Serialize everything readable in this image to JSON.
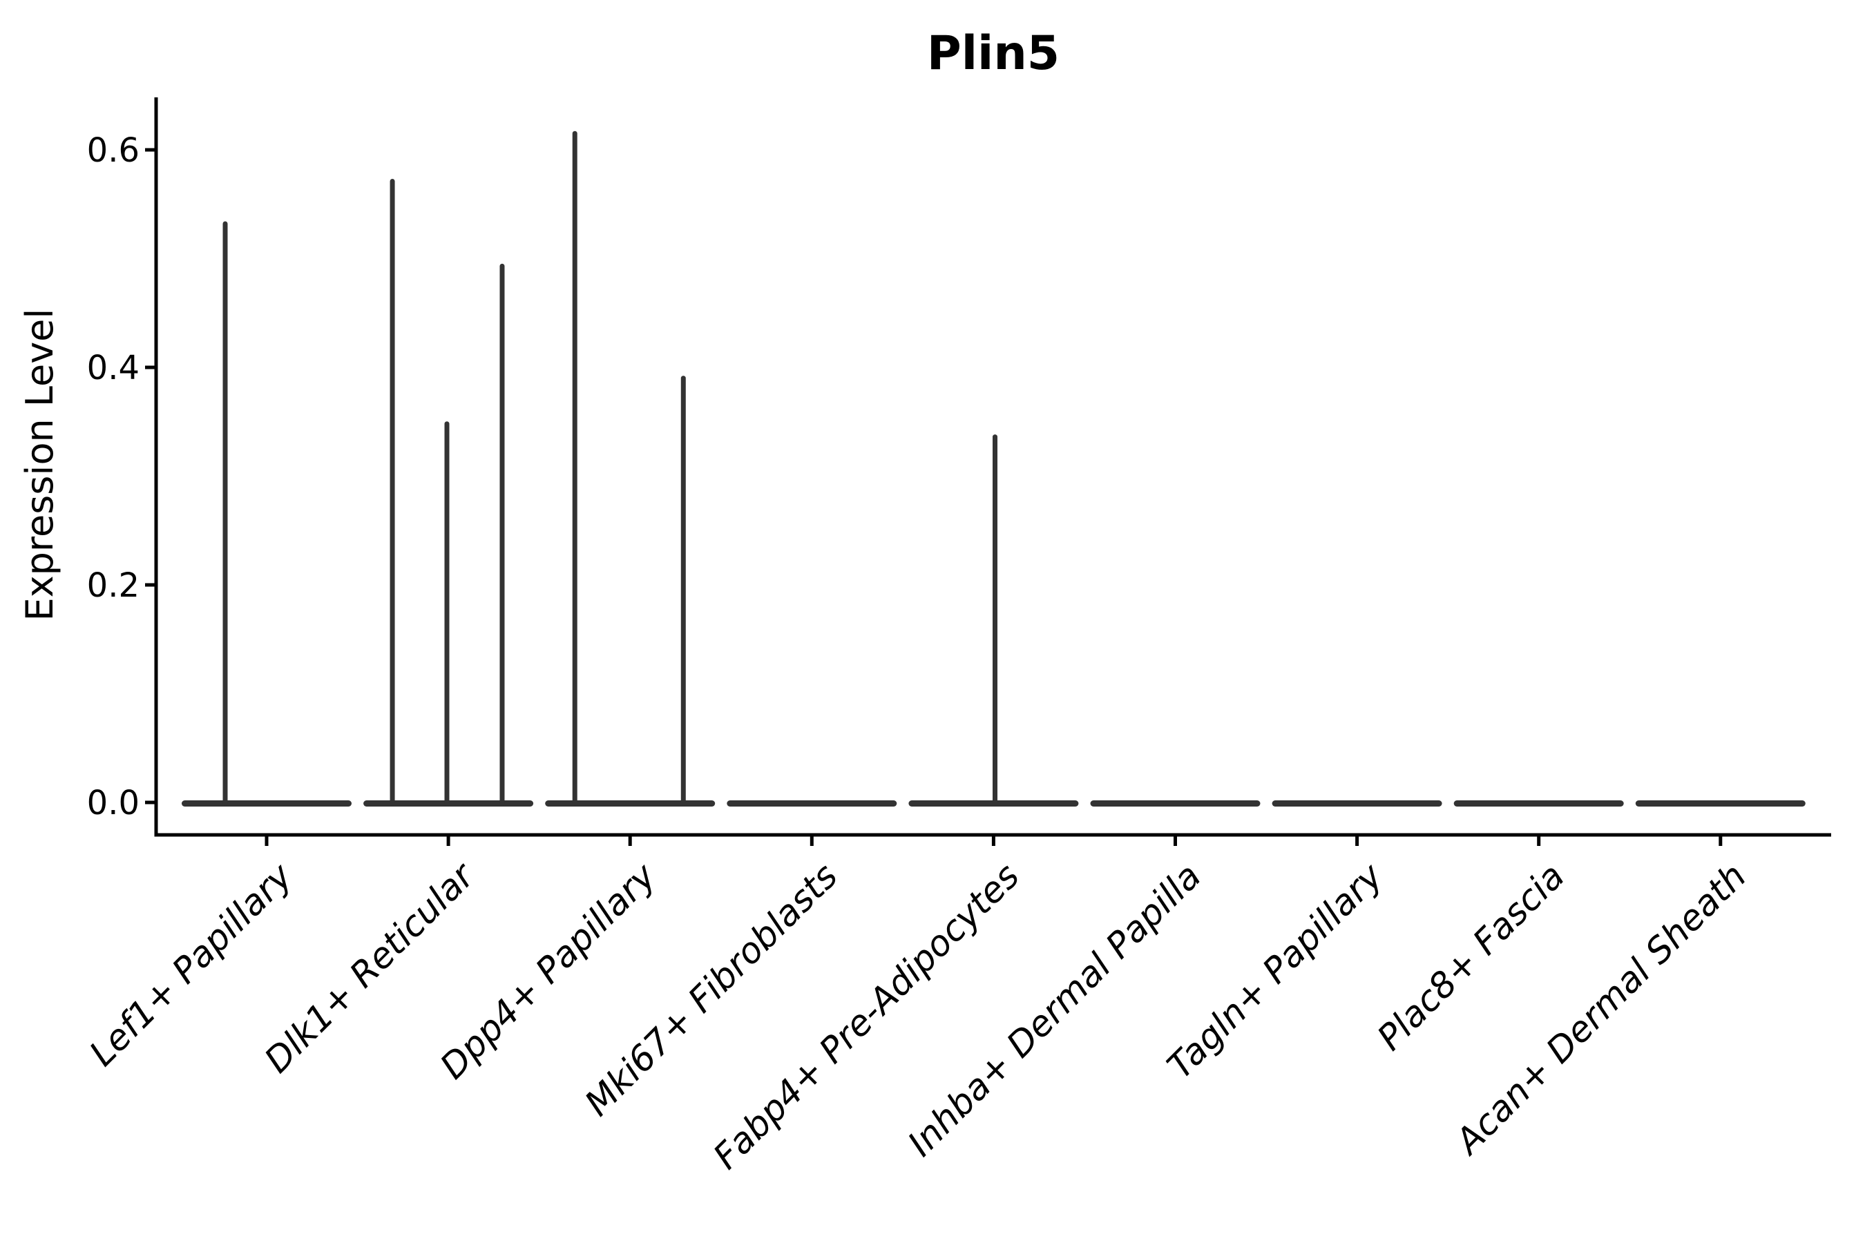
{
  "figure": {
    "background": "#ffffff"
  },
  "chart_data": {
    "type": "violin",
    "title": "Plin5",
    "xlabel": "",
    "ylabel": "Expression Level",
    "ylim": [
      -0.03,
      0.648
    ],
    "ytick_values": [
      0.0,
      0.2,
      0.4,
      0.6
    ],
    "yticks": [
      "0.0",
      "0.2",
      "0.4",
      "0.6"
    ],
    "grid": false,
    "legend": "none",
    "label_rotation_deg": 45,
    "categories": [
      "Lef1+ Papillary",
      "Dlk1+ Reticular",
      "Dpp4+ Papillary",
      "Mki67+ Fibroblasts",
      "Fabp4+ Pre-Adipocytes",
      "Inhba+ Dermal Papilla",
      "Tagln+ Papillary",
      "Plac8+ Fascia",
      "Acan+ Dermal Sheath"
    ],
    "violins": [
      {
        "category": "Lef1+ Papillary",
        "base_value": 0.0,
        "spikes": [
          {
            "pos": -0.228,
            "value": 0.534
          }
        ]
      },
      {
        "category": "Dlk1+ Reticular",
        "base_value": 0.0,
        "spikes": [
          {
            "pos": -0.308,
            "value": 0.573
          },
          {
            "pos": -0.008,
            "value": 0.35
          },
          {
            "pos": 0.296,
            "value": 0.495
          }
        ]
      },
      {
        "category": "Dpp4+ Papillary",
        "base_value": 0.0,
        "spikes": [
          {
            "pos": -0.304,
            "value": 0.617
          },
          {
            "pos": 0.293,
            "value": 0.392
          }
        ]
      },
      {
        "category": "Mki67+ Fibroblasts",
        "base_value": 0.0,
        "spikes": []
      },
      {
        "category": "Fabp4+ Pre-Adipocytes",
        "base_value": 0.0,
        "spikes": [
          {
            "pos": 0.008,
            "value": 0.338
          }
        ]
      },
      {
        "category": "Inhba+ Dermal Papilla",
        "base_value": 0.0,
        "spikes": []
      },
      {
        "category": "Tagln+ Papillary",
        "base_value": 0.0,
        "spikes": []
      },
      {
        "category": "Plac8+ Fascia",
        "base_value": 0.0,
        "spikes": []
      },
      {
        "category": "Acan+ Dermal Sheath",
        "base_value": 0.0,
        "spikes": []
      }
    ],
    "colors": {
      "violin": "#333333",
      "axis": "#000000",
      "text": "#000000",
      "background": "#ffffff"
    }
  }
}
